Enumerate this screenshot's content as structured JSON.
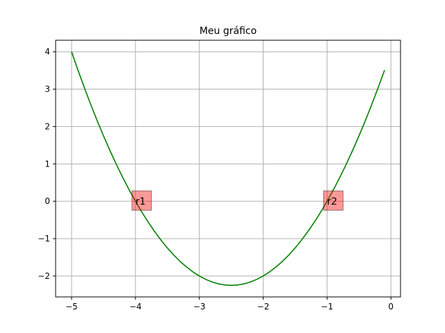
{
  "chart_data": {
    "type": "line",
    "title": "Meu gráfico",
    "xlabel": "",
    "ylabel": "",
    "xlim": [
      -5.25,
      0.15
    ],
    "ylim": [
      -2.56,
      4.31
    ],
    "grid": true,
    "x_ticks": [
      -5,
      -4,
      -3,
      -2,
      -1,
      0
    ],
    "x_tick_labels": [
      "−5",
      "−4",
      "−3",
      "−2",
      "−1",
      "0"
    ],
    "y_ticks": [
      -2,
      -1,
      0,
      1,
      2,
      3,
      4
    ],
    "y_tick_labels": [
      "−2",
      "−1",
      "0",
      "1",
      "2",
      "3",
      "4"
    ],
    "series": [
      {
        "color": "#008000",
        "x": [
          -5.0,
          -4.9,
          -4.8,
          -4.7,
          -4.6,
          -4.5,
          -4.4,
          -4.3,
          -4.2,
          -4.1,
          -4.0,
          -3.9,
          -3.8,
          -3.7,
          -3.6,
          -3.5,
          -3.4,
          -3.3,
          -3.2,
          -3.1,
          -3.0,
          -2.9,
          -2.8,
          -2.7,
          -2.6,
          -2.5,
          -2.4,
          -2.3,
          -2.2,
          -2.1,
          -2.0,
          -1.9,
          -1.8,
          -1.7,
          -1.6,
          -1.5,
          -1.4,
          -1.3,
          -1.2,
          -1.1,
          -1.0,
          -0.9,
          -0.8,
          -0.7,
          -0.6,
          -0.5,
          -0.4,
          -0.3,
          -0.2,
          -0.1
        ],
        "y": [
          4.0,
          3.51,
          3.04,
          2.59,
          2.16,
          1.75,
          1.36,
          0.99,
          0.64,
          0.31,
          0.0,
          -0.29,
          -0.56,
          -0.81,
          -1.04,
          -1.25,
          -1.44,
          -1.61,
          -1.76,
          -1.89,
          -2.0,
          -2.09,
          -2.16,
          -2.21,
          -2.24,
          -2.25,
          -2.24,
          -2.21,
          -2.16,
          -2.09,
          -2.0,
          -1.89,
          -1.76,
          -1.61,
          -1.44,
          -1.25,
          -1.04,
          -0.81,
          -0.56,
          -0.29,
          0.0,
          0.31,
          0.64,
          0.99,
          1.36,
          1.75,
          2.16,
          2.59,
          3.04,
          3.51
        ]
      }
    ],
    "annotations": [
      {
        "text": "r1",
        "x": -4.0,
        "y": 0.0,
        "box_color": "#ff0000"
      },
      {
        "text": "r2",
        "x": -1.0,
        "y": 0.0,
        "box_color": "#ff0000"
      }
    ]
  }
}
